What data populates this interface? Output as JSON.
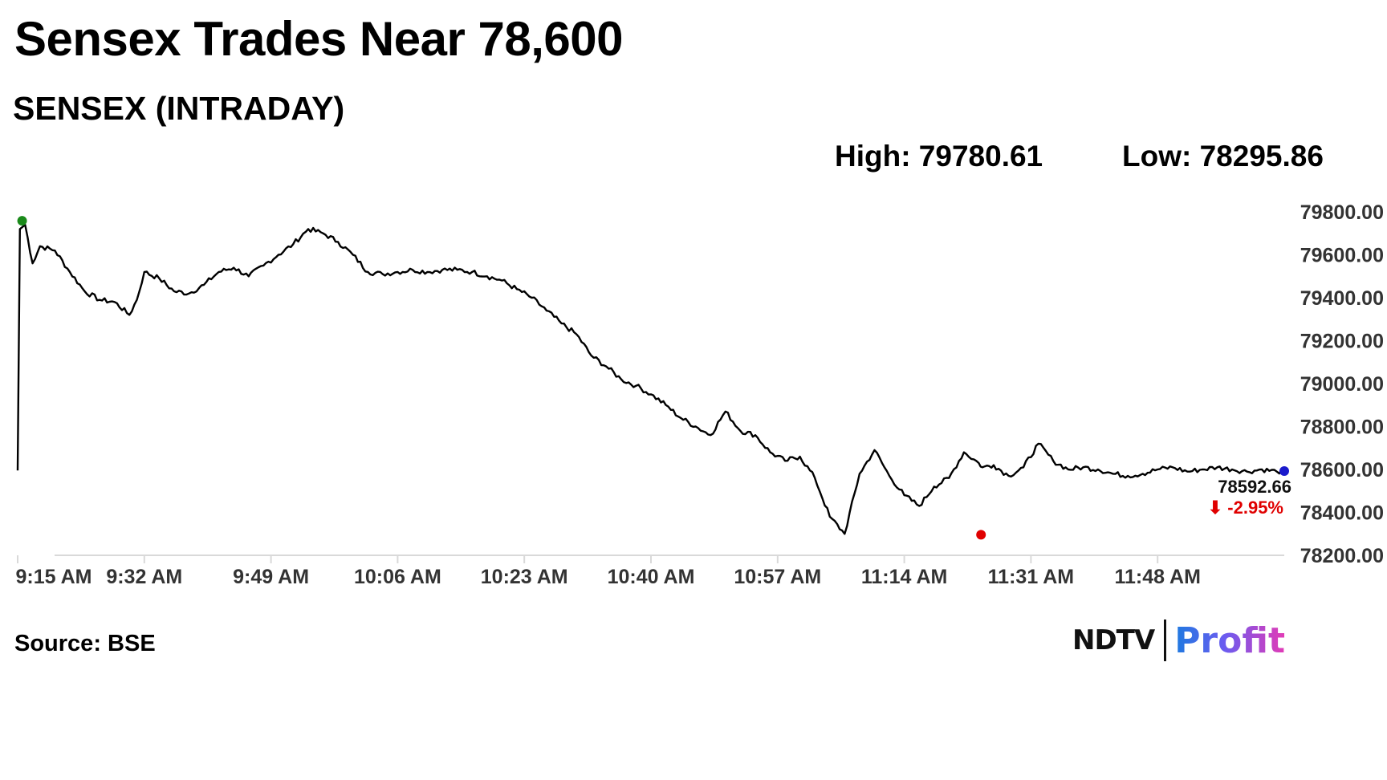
{
  "header": {
    "headline": "Sensex Trades Near 78,600",
    "subtitle": "SENSEX (INTRADAY)",
    "high_label": "High: 79780.61",
    "low_label": "Low: 78295.86"
  },
  "footer": {
    "source": "Source: BSE",
    "logo_ndtv": "NDTV",
    "logo_profit": "Profit"
  },
  "colors": {
    "line": "#000000",
    "high_marker": "#1a8a1a",
    "low_marker": "#e00000",
    "last_marker": "#1a1acc",
    "change_text": "#e00000",
    "axis": "#d9d9d9"
  },
  "chart_data": {
    "type": "line",
    "title": "SENSEX (INTRADAY)",
    "xlabel": "",
    "ylabel": "",
    "x_ticks": [
      "9:15 AM",
      "9:32 AM",
      "9:49 AM",
      "10:06 AM",
      "10:23 AM",
      "10:40 AM",
      "10:57 AM",
      "11:14 AM",
      "11:31 AM",
      "11:48 AM"
    ],
    "y_ticks": [
      "79800.00",
      "79600.00",
      "79400.00",
      "79200.00",
      "79000.00",
      "78800.00",
      "78600.00",
      "78400.00",
      "78200.00"
    ],
    "ylim": [
      78200,
      79800
    ],
    "xlim_minutes_after_open": [
      0,
      170
    ],
    "grid": false,
    "legend": "none",
    "series": [
      {
        "minutes_after_open": [
          0,
          0.3,
          1,
          2,
          3,
          5,
          7,
          9,
          11,
          13,
          15,
          16,
          17,
          19,
          21,
          23,
          25,
          27,
          29,
          31,
          33,
          35,
          37,
          39,
          41,
          43,
          45,
          47,
          49,
          51,
          53,
          55,
          57,
          59,
          61,
          63,
          65,
          67,
          69,
          71,
          73,
          75,
          77,
          79,
          81,
          83,
          85,
          87,
          89,
          91,
          93,
          95,
          97,
          99,
          101,
          103,
          105,
          107,
          109,
          111,
          113,
          115,
          117,
          119,
          121,
          123,
          125,
          127,
          129,
          129.5,
          131,
          133,
          135,
          137,
          139,
          141,
          143,
          145,
          147,
          149,
          151,
          153,
          155,
          157,
          159,
          161,
          163,
          165,
          167,
          169,
          170
        ],
        "values": [
          78595,
          79720,
          79740,
          79560,
          79640,
          79620,
          79520,
          79430,
          79390,
          79380,
          79320,
          79390,
          79520,
          79490,
          79430,
          79420,
          79460,
          79520,
          79540,
          79500,
          79550,
          79600,
          79650,
          79720,
          79700,
          79660,
          79600,
          79520,
          79510,
          79520,
          79530,
          79520,
          79530,
          79530,
          79520,
          79500,
          79480,
          79440,
          79400,
          79340,
          79280,
          79230,
          79130,
          79080,
          79020,
          78990,
          78950,
          78900,
          78840,
          78800,
          78760,
          78870,
          78780,
          78760,
          78680,
          78640,
          78660,
          78560,
          78380,
          78300,
          78580,
          78690,
          78570,
          78480,
          78430,
          78520,
          78560,
          78680,
          78630,
          78610,
          78620,
          78570,
          78610,
          78720,
          78640,
          78600,
          78610,
          78600,
          78580,
          78570,
          78580,
          78600,
          78610,
          78590,
          78600,
          78610,
          78600,
          78590,
          78600,
          78590,
          78592.66
        ]
      }
    ],
    "high": {
      "minutes_after_open": 0.6,
      "value": 79780.61
    },
    "low": {
      "minutes_after_open": 129.3,
      "value": 78295.86
    },
    "last": {
      "value_label": "78592.66",
      "change_label": "⬇ -2.95%",
      "value": 78592.66
    }
  }
}
